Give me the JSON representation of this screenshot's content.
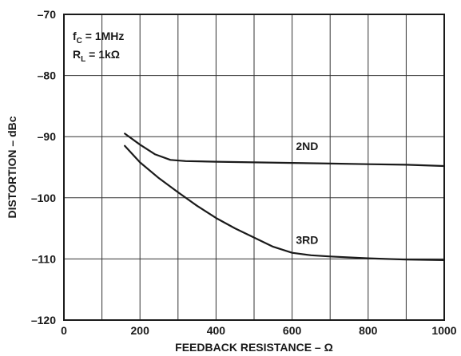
{
  "chart_data": {
    "type": "line",
    "xlabel": "FEEDBACK RESISTANCE – Ω",
    "ylabel": "DISTORTION – dBc",
    "xlim": [
      0,
      1000
    ],
    "ylim": [
      -120,
      -70
    ],
    "xticks": [
      0,
      200,
      400,
      600,
      800,
      1000
    ],
    "yticks": [
      -70,
      -80,
      -90,
      -100,
      -110,
      -120
    ],
    "grid": true,
    "annotations": {
      "fc": {
        "main": "f",
        "sub": "C",
        "rest": " = 1MHz"
      },
      "rl": {
        "main": "R",
        "sub": "L",
        "rest": " = 1kΩ"
      }
    },
    "series": [
      {
        "name": "2ND",
        "x": [
          160,
          200,
          240,
          280,
          320,
          400,
          500,
          600,
          700,
          800,
          900,
          1000
        ],
        "y": [
          -89.5,
          -91.3,
          -92.9,
          -93.8,
          -94.0,
          -94.1,
          -94.2,
          -94.3,
          -94.4,
          -94.5,
          -94.6,
          -94.8
        ]
      },
      {
        "name": "3RD",
        "x": [
          160,
          200,
          250,
          300,
          350,
          400,
          450,
          500,
          550,
          600,
          650,
          700,
          800,
          900,
          1000
        ],
        "y": [
          -91.5,
          -94.2,
          -96.8,
          -99.1,
          -101.3,
          -103.3,
          -105.0,
          -106.5,
          -108.0,
          -109.0,
          -109.4,
          -109.6,
          -109.9,
          -110.1,
          -110.2
        ]
      }
    ]
  }
}
